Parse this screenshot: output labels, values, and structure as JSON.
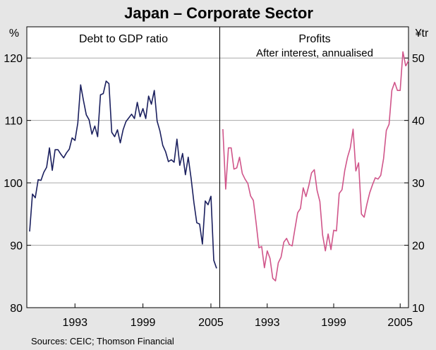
{
  "title": "Japan – Corporate Sector",
  "source": "Sources: CEIC; Thomson Financial",
  "colors": {
    "left_series": "#1a1f5e",
    "right_series": "#d0558a",
    "background": "#e6e6e6",
    "plot_bg": "#ffffff"
  },
  "chart_data": [
    {
      "type": "line",
      "title": "Debt to GDP ratio",
      "subtitle": "",
      "ylabel": "%",
      "ylim": [
        80,
        125
      ],
      "yticks": [
        80,
        90,
        100,
        110,
        120
      ],
      "xlim": [
        1988.75,
        2005.75
      ],
      "xticks": [
        1993,
        1999,
        2005
      ],
      "xtick_labels": [
        "1993",
        "1999",
        "2005"
      ],
      "series": [
        {
          "name": "Debt to GDP ratio",
          "x": [
            1989.0,
            1989.25,
            1989.5,
            1989.75,
            1990.0,
            1990.25,
            1990.5,
            1990.75,
            1991.0,
            1991.25,
            1991.5,
            1991.75,
            1992.0,
            1992.25,
            1992.5,
            1992.75,
            1993.0,
            1993.25,
            1993.5,
            1993.75,
            1994.0,
            1994.25,
            1994.5,
            1994.75,
            1995.0,
            1995.25,
            1995.5,
            1995.75,
            1996.0,
            1996.25,
            1996.5,
            1996.75,
            1997.0,
            1997.25,
            1997.5,
            1997.75,
            1998.0,
            1998.25,
            1998.5,
            1998.75,
            1999.0,
            1999.25,
            1999.5,
            1999.75,
            2000.0,
            2000.25,
            2000.5,
            2000.75,
            2001.0,
            2001.25,
            2001.5,
            2001.75,
            2002.0,
            2002.25,
            2002.5,
            2002.75,
            2003.0,
            2003.25,
            2003.5,
            2003.75,
            2004.0,
            2004.25,
            2004.5,
            2004.75,
            2005.0
          ],
          "values": [
            92.2,
            98.2,
            97.6,
            100.5,
            100.4,
            101.7,
            102.5,
            105.6,
            102.0,
            105.3,
            105.3,
            104.6,
            104.0,
            104.8,
            105.4,
            107.2,
            106.8,
            109.6,
            115.7,
            113.2,
            110.9,
            110.1,
            107.8,
            109.1,
            107.4,
            114.1,
            114.3,
            116.3,
            115.9,
            108.1,
            107.4,
            108.5,
            106.4,
            108.5,
            109.8,
            110.4,
            111.0,
            110.3,
            112.9,
            110.6,
            111.9,
            110.3,
            113.9,
            112.6,
            114.8,
            109.9,
            108.3,
            106.0,
            105.0,
            103.4,
            103.7,
            103.3,
            107.0,
            102.8,
            104.7,
            101.3,
            104.1,
            100.7,
            96.8,
            93.6,
            93.4,
            90.2,
            97.1,
            96.5,
            97.9
          ]
        },
        {
          "name": "Debt to GDP ratio (tail)",
          "x": [
            2005.0,
            2005.25,
            2005.5
          ],
          "values": [
            97.9,
            87.6,
            86.3
          ]
        }
      ]
    },
    {
      "type": "line",
      "title": "Profits",
      "subtitle": "After interest, annualised",
      "ylabel": "¥tr",
      "ylim": [
        10,
        55
      ],
      "yticks": [
        10,
        20,
        30,
        40,
        50
      ],
      "xlim": [
        1988.75,
        2005.75
      ],
      "xticks": [
        1993,
        1999,
        2005
      ],
      "xtick_labels": [
        "1993",
        "1999",
        "2005"
      ],
      "series": [
        {
          "name": "Profits",
          "x": [
            1989.0,
            1989.25,
            1989.5,
            1989.75,
            1990.0,
            1990.25,
            1990.5,
            1990.75,
            1991.0,
            1991.25,
            1991.5,
            1991.75,
            1992.0,
            1992.25,
            1992.5,
            1992.75,
            1993.0,
            1993.25,
            1993.5,
            1993.75,
            1994.0,
            1994.25,
            1994.5,
            1994.75,
            1995.0,
            1995.25,
            1995.5,
            1995.75,
            1996.0,
            1996.25,
            1996.5,
            1996.75,
            1997.0,
            1997.25,
            1997.5,
            1997.75,
            1998.0,
            1998.25,
            1998.5,
            1998.75,
            1999.0,
            1999.25,
            1999.5,
            1999.75,
            2000.0,
            2000.25,
            2000.5,
            2000.75,
            2001.0,
            2001.25,
            2001.5,
            2001.75,
            2002.0,
            2002.25,
            2002.5,
            2002.75,
            2003.0,
            2003.25,
            2003.5,
            2003.75,
            2004.0,
            2004.25,
            2004.5,
            2004.75,
            2005.0,
            2005.25,
            2005.5
          ],
          "values": [
            38.6,
            29.0,
            35.6,
            35.6,
            32.2,
            32.4,
            34.1,
            31.5,
            30.6,
            29.9,
            27.9,
            27.2,
            23.6,
            19.6,
            19.8,
            16.4,
            19.1,
            17.9,
            14.7,
            14.3,
            17.2,
            18.1,
            20.5,
            21.1,
            20.1,
            19.9,
            22.6,
            25.2,
            25.9,
            29.2,
            27.8,
            29.5,
            31.6,
            32.1,
            28.8,
            27.0,
            21.6,
            19.1,
            21.8,
            19.3,
            22.4,
            22.3,
            28.3,
            28.9,
            32.0,
            34.1,
            35.6,
            38.6,
            31.9,
            33.2,
            25.0,
            24.5,
            26.6,
            28.4,
            29.7,
            30.8,
            30.6,
            31.2,
            33.9,
            38.4,
            39.4,
            44.8,
            46.1,
            44.8,
            44.8,
            51.0,
            48.7
          ]
        },
        {
          "name": "Profits (tail)",
          "x": [
            2005.5,
            2005.75
          ],
          "values": [
            48.7,
            49.6
          ]
        }
      ]
    }
  ]
}
